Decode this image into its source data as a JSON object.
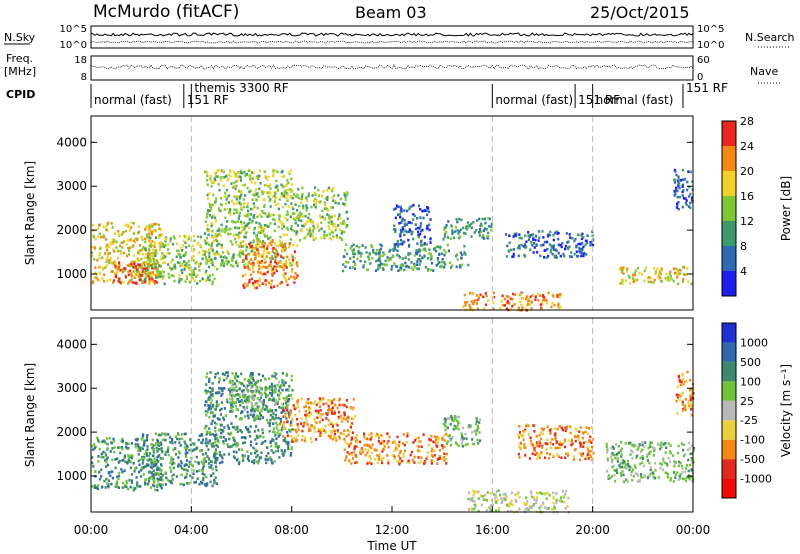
{
  "header": {
    "station": "McMurdo (fitACF)",
    "beam": "Beam 03",
    "date": "25/Oct/2015"
  },
  "left_labels": {
    "nsky": "N.Sky",
    "freq_line1": "Freq.",
    "freq_line2": "[MHz]",
    "cpid": "CPID"
  },
  "right_labels": {
    "nsearch": "N.Search",
    "nave": "Nave"
  },
  "strip_ticks": {
    "noise_left": [
      "10^5",
      "10^0"
    ],
    "noise_right": [
      "10^5",
      "10^0"
    ],
    "freq_left": [
      "18",
      "8"
    ],
    "nave_right": [
      "60",
      "0"
    ]
  },
  "cpid_segments": [
    {
      "label": "normal (fast)",
      "start_h": 0.0
    },
    {
      "label": "151 RF",
      "start_h": 3.7
    },
    {
      "label": "themis 3300 RF",
      "start_h": 4.0
    },
    {
      "label": "normal (fast)",
      "start_h": 16.0
    },
    {
      "label": "151 RF",
      "start_h": 19.3
    },
    {
      "label": "normal (fast)",
      "start_h": 20.0
    },
    {
      "label": "151 RF",
      "start_h": 23.6
    }
  ],
  "chart_data": [
    {
      "type": "heatmap",
      "name_hint": "power",
      "ylabel": "Slant Range [km]",
      "yticks": [
        "1000",
        "2000",
        "3000",
        "4000"
      ],
      "yrange": [
        180,
        4600
      ],
      "xrange": [
        0,
        24
      ],
      "colorbar_label": "Power [dB]",
      "colorbar_ticks": [
        "4",
        "8",
        "12",
        "16",
        "20",
        "24",
        "28"
      ],
      "colorbar_colors": [
        "#1e1ef0",
        "#2f6ab4",
        "#3d9a6c",
        "#7dc836",
        "#f0d22a",
        "#f08a14",
        "#e8281e"
      ],
      "regions": [
        {
          "t0": 0.0,
          "t1": 2.8,
          "r0": 800,
          "r1": 2200,
          "level": 4
        },
        {
          "t0": 0.8,
          "t1": 2.6,
          "r0": 800,
          "r1": 1300,
          "level": 6
        },
        {
          "t0": 2.0,
          "t1": 5.0,
          "r0": 800,
          "r1": 1900,
          "level": 3
        },
        {
          "t0": 4.5,
          "t1": 8.0,
          "r0": 1200,
          "r1": 3400,
          "level": 3
        },
        {
          "t0": 6.0,
          "t1": 8.2,
          "r0": 700,
          "r1": 1800,
          "level": 5
        },
        {
          "t0": 8.0,
          "t1": 10.2,
          "r0": 1800,
          "r1": 3000,
          "level": 3
        },
        {
          "t0": 10.0,
          "t1": 15.0,
          "r0": 1100,
          "r1": 1700,
          "level": 2
        },
        {
          "t0": 12.0,
          "t1": 13.5,
          "r0": 1700,
          "r1": 2600,
          "level": 1
        },
        {
          "t0": 14.0,
          "t1": 16.0,
          "r0": 1800,
          "r1": 2300,
          "level": 2
        },
        {
          "t0": 14.8,
          "t1": 18.7,
          "r0": 200,
          "r1": 600,
          "level": 5
        },
        {
          "t0": 16.5,
          "t1": 20.0,
          "r0": 1400,
          "r1": 2000,
          "level": 1
        },
        {
          "t0": 21.0,
          "t1": 24.0,
          "r0": 800,
          "r1": 1200,
          "level": 4
        },
        {
          "t0": 23.2,
          "t1": 24.0,
          "r0": 2500,
          "r1": 3400,
          "level": 1
        }
      ]
    },
    {
      "type": "heatmap",
      "name_hint": "velocity",
      "ylabel": "Slant Range [km]",
      "yticks": [
        "1000",
        "2000",
        "3000",
        "4000"
      ],
      "yrange": [
        180,
        4600
      ],
      "xrange": [
        0,
        24
      ],
      "colorbar_label": "Velocity [m s⁻¹]",
      "colorbar_ticks": [
        "1000",
        "500",
        "100",
        "25",
        "-25",
        "-100",
        "-500",
        "-1000"
      ],
      "colorbar_colors": [
        "#1e30d2",
        "#2f6aa8",
        "#3d8a6a",
        "#6cc43c",
        "#b8b8b8",
        "#e8d23c",
        "#f08a14",
        "#e02a1e",
        "#f00a0a"
      ],
      "regions": [
        {
          "t0": 0.0,
          "t1": 2.8,
          "r0": 700,
          "r1": 1900,
          "level": 2
        },
        {
          "t0": 2.0,
          "t1": 5.0,
          "r0": 800,
          "r1": 2000,
          "level": 2
        },
        {
          "t0": 4.5,
          "t1": 8.0,
          "r0": 1300,
          "r1": 3400,
          "level": 2
        },
        {
          "t0": 5.5,
          "t1": 7.5,
          "r0": 2500,
          "r1": 3200,
          "level": 3
        },
        {
          "t0": 7.5,
          "t1": 10.5,
          "r0": 1800,
          "r1": 2800,
          "level": 6
        },
        {
          "t0": 10.0,
          "t1": 14.2,
          "r0": 1300,
          "r1": 2000,
          "level": 6
        },
        {
          "t0": 14.0,
          "t1": 15.5,
          "r0": 1700,
          "r1": 2400,
          "level": 3
        },
        {
          "t0": 15.0,
          "t1": 19.0,
          "r0": 200,
          "r1": 700,
          "level": 4
        },
        {
          "t0": 17.0,
          "t1": 20.0,
          "r0": 1400,
          "r1": 2200,
          "level": 6
        },
        {
          "t0": 20.5,
          "t1": 24.0,
          "r0": 900,
          "r1": 1800,
          "level": 3
        },
        {
          "t0": 23.3,
          "t1": 24.0,
          "r0": 2400,
          "r1": 3400,
          "level": 6
        }
      ]
    }
  ],
  "x_axis": {
    "ticks": [
      "00:00",
      "04:00",
      "08:00",
      "12:00",
      "16:00",
      "20:00",
      "00:00"
    ],
    "label": "Time UT"
  }
}
